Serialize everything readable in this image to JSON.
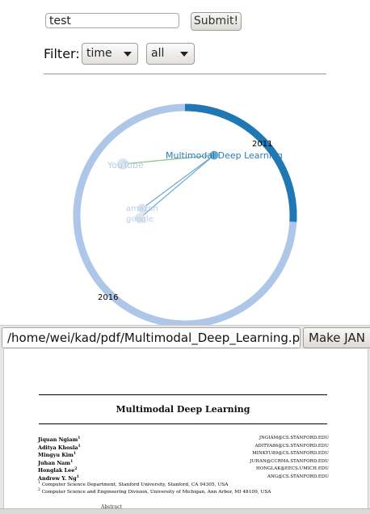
{
  "search": {
    "value": "test"
  },
  "submit_label": "Submit!",
  "filter": {
    "label": "Filter:",
    "type_value": "time",
    "range_value": "all"
  },
  "viz": {
    "start_year": "2011",
    "end_year": "2016",
    "nodes": [
      {
        "label": "Multimodal Deep Learning"
      },
      {
        "label": "YouTube"
      },
      {
        "label": "amazon"
      },
      {
        "label": "google"
      }
    ],
    "colors": {
      "ring_light": "#aec7e8",
      "ring_dark": "#1f77b4",
      "link_blue": "#6aa7cf",
      "link_green": "#86c686"
    }
  },
  "pdf_path": "/home/wei/kad/pdf/Multimodal_Deep_Learning.pdf",
  "make_label": "Make JAN",
  "paper": {
    "title": "Multimodal Deep Learning",
    "authors": [
      {
        "name": "Jiquan Ngiam",
        "sup": "1",
        "email": "JNGIAM@CS.STANFORD.EDU"
      },
      {
        "name": "Aditya Khosla",
        "sup": "1",
        "email": "ADITYA86@CS.STANFORD.EDU"
      },
      {
        "name": "Mingyu Kim",
        "sup": "1",
        "email": "MINKYU89@CS.STANFORD.EDU"
      },
      {
        "name": "Juhan Nam",
        "sup": "1",
        "email": "JUHAN@CCRMA.STANFORD.EDU"
      },
      {
        "name": "Honglak Lee",
        "sup": "2",
        "email": "HONGLAK@EECS.UMICH.EDU"
      },
      {
        "name": "Andrew Y. Ng",
        "sup": "1",
        "email": "ANG@CS.STANFORD.EDU"
      }
    ],
    "affiliations": [
      {
        "sup": "1",
        "text": "Computer Science Department, Stanford University, Stanford, CA 94305, USA"
      },
      {
        "sup": "2",
        "text": "Computer Science and Engineering Division, University of Michigan, Ann Arbor, MI 48109, USA"
      }
    ],
    "abstract_heading": "Abstract"
  }
}
